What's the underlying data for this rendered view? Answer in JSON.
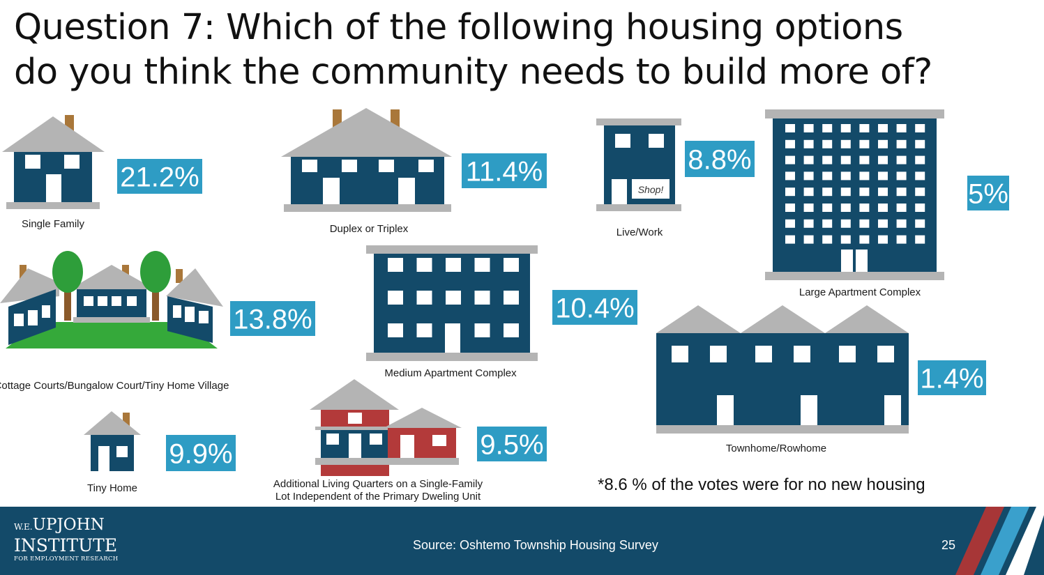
{
  "title_line1": "Question 7: Which of the following housing options",
  "title_line2": "do you think the community needs to build more of?",
  "colors": {
    "house": "#134a69",
    "roof": "#b4b4b4",
    "badge": "#2e9cc4",
    "chimney": "#a9773a",
    "tree": "#2e9e3a",
    "trunk": "#8a5a2b",
    "grass": "#35a93a",
    "red": "#b33a3a",
    "stripe_red": "#a73637",
    "stripe_blue": "#3aa0cc"
  },
  "shop_sign": "Shop!",
  "footnote": "*8.6 % of the votes were for no new housing",
  "footer": {
    "logo_line1_small": "W.E.",
    "logo_line1": "UPJOHN",
    "logo_line2": "INSTITUTE",
    "logo_line3": "FOR EMPLOYMENT RESEARCH",
    "source": "Source: Oshtemo Township Housing Survey",
    "page_number": "25"
  },
  "chart_data": {
    "type": "bar",
    "categories": [
      "Single Family",
      "Duplex or Triplex",
      "Live/Work",
      "Large Apartment Complex",
      "Cottage Courts/Bungalow Court/Tiny Home Village",
      "Medium Apartment Complex",
      "Townhome/Rowhome",
      "Tiny Home",
      "Additional Living Quarters on a Single-Family Lot Independent of the Primary Dweling Unit"
    ],
    "category_lines": {
      "ALQ_line1": "Additional Living Quarters on a Single-Family",
      "ALQ_line2": "Lot Independent of the Primary Dweling Unit"
    },
    "values": [
      21.2,
      11.4,
      8.8,
      5,
      13.8,
      10.4,
      1.4,
      9.9,
      9.5
    ],
    "value_labels": [
      "21.2%",
      "11.4%",
      "8.8%",
      "5%",
      "13.8%",
      "10.4%",
      "1.4%",
      "9.9%",
      "9.5%"
    ],
    "unit": "%"
  }
}
